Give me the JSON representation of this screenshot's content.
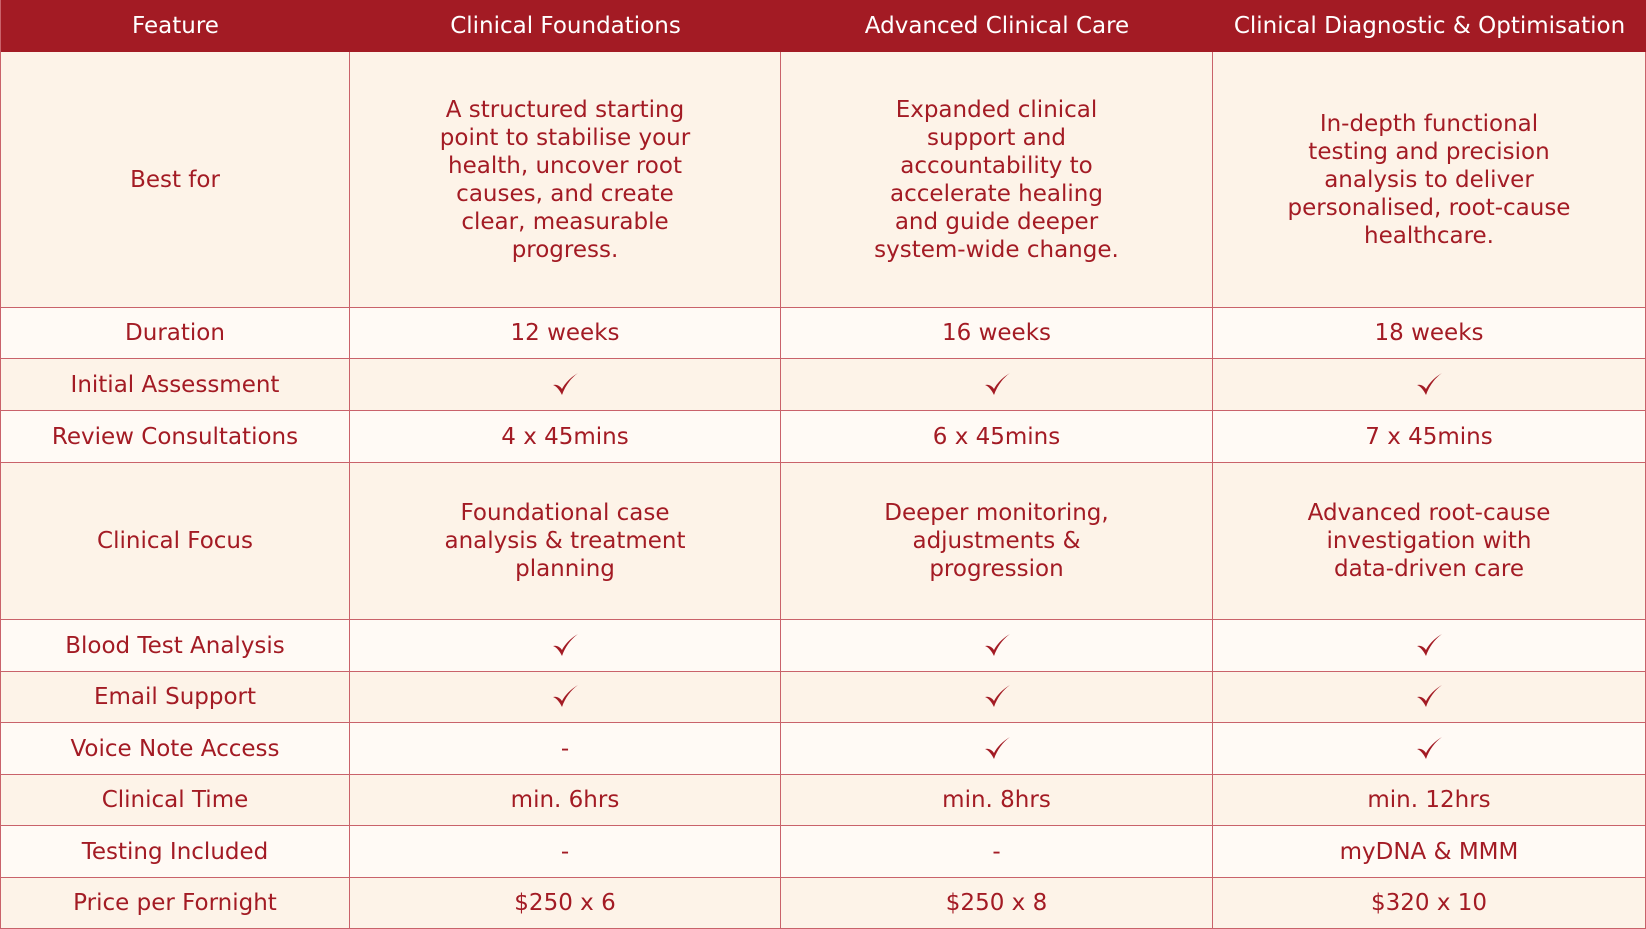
{
  "colors": {
    "accent": "#a31b24",
    "header_text": "#ffffff",
    "row_light": "#fffaf5",
    "row_tint": "#fdf3e8",
    "border": "#c9626a"
  },
  "header": {
    "feature": "Feature",
    "plans": [
      "Clinical Foundations",
      "Advanced Clinical Care",
      "Clinical Diagnostic & Optimisation"
    ]
  },
  "rows": [
    {
      "label": "Best for",
      "values": [
        "A structured starting point to stabilise your health, uncover root causes, and create clear, measurable progress.",
        "Expanded clinical support and accountability to accelerate healing and guide deeper system-wide change.",
        "In-depth functional testing and precision analysis to deliver personalised, root-cause healthcare."
      ]
    },
    {
      "label": "Duration",
      "values": [
        "12 weeks",
        "16 weeks",
        "18 weeks"
      ]
    },
    {
      "label": "Initial Assessment",
      "values": [
        "check-icon",
        "check-icon",
        "check-icon"
      ]
    },
    {
      "label": "Review Consultations",
      "values": [
        "4 x 45mins",
        "6 x 45mins",
        "7 x 45mins"
      ]
    },
    {
      "label": "Clinical Focus",
      "values": [
        "Foundational case analysis & treatment planning",
        "Deeper monitoring, adjustments & progression",
        "Advanced root-cause investigation with data-driven care"
      ]
    },
    {
      "label": "Blood Test Analysis",
      "values": [
        "check-icon",
        "check-icon",
        "check-icon"
      ]
    },
    {
      "label": "Email Support",
      "values": [
        "check-icon",
        "check-icon",
        "check-icon"
      ]
    },
    {
      "label": "Voice Note Access",
      "values": [
        "-",
        "check-icon",
        "check-icon"
      ]
    },
    {
      "label": "Clinical Time",
      "values": [
        "min. 6hrs",
        "min. 8hrs",
        "min. 12hrs"
      ]
    },
    {
      "label": "Testing Included",
      "values": [
        "-",
        "-",
        "myDNA & MMM"
      ]
    },
    {
      "label": "Price per Fornight",
      "values": [
        "$250 x 6",
        "$250 x 8",
        "$320 x 10"
      ]
    }
  ]
}
